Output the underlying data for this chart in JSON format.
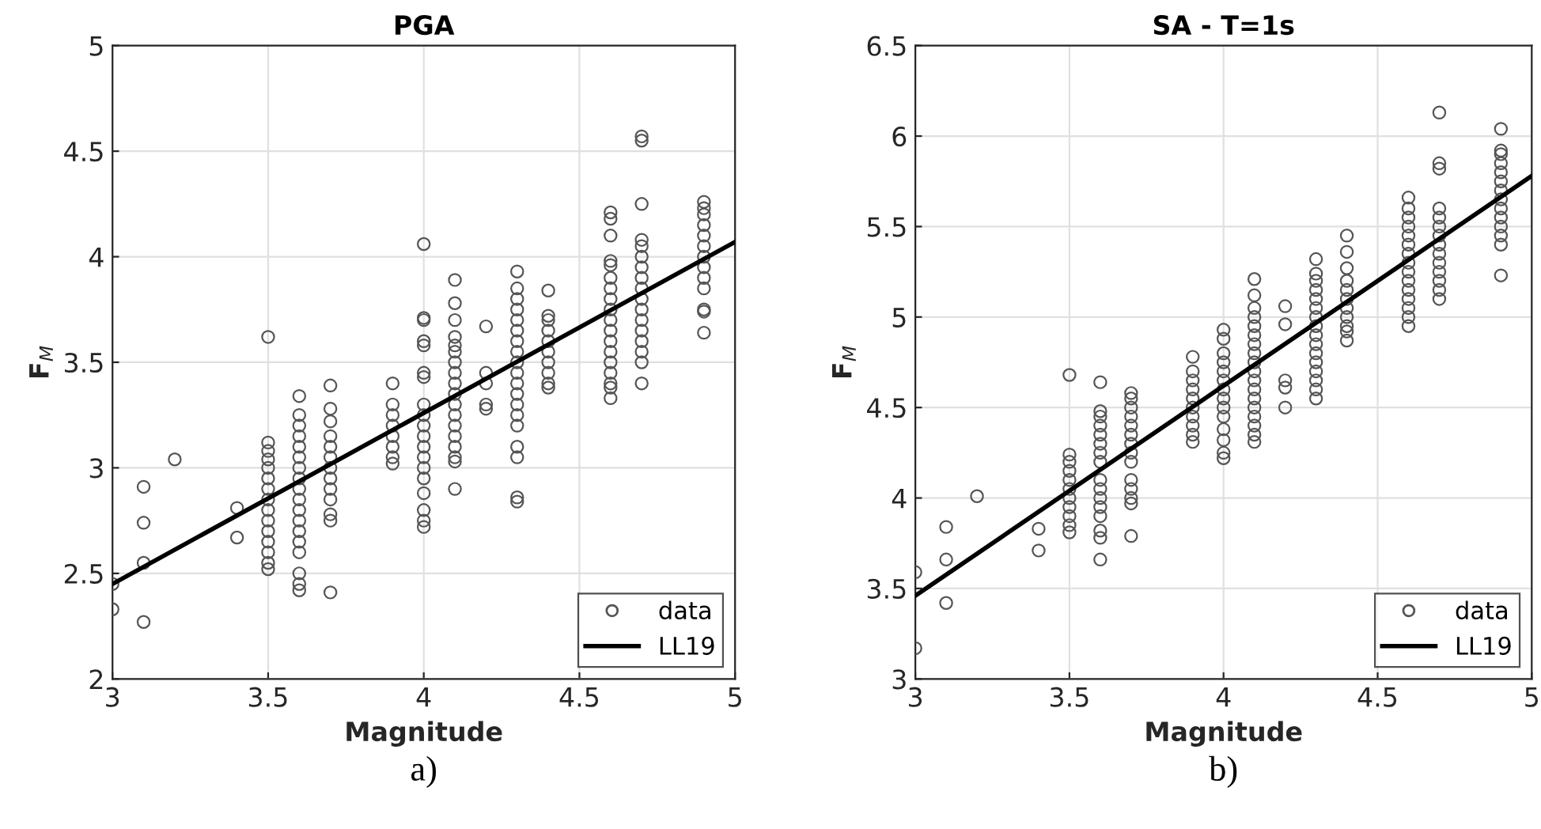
{
  "chart_data": [
    {
      "type": "scatter",
      "title": "PGA",
      "xlabel": "Magnitude",
      "ylabel": "F$_{M}$",
      "xlim": [
        3,
        5
      ],
      "xticks": [
        3,
        3.5,
        4,
        4.5,
        5
      ],
      "ylim": [
        2,
        5
      ],
      "yticks": [
        2,
        2.5,
        3,
        3.5,
        4,
        4.5,
        5
      ],
      "grid": true,
      "legend": "bottom right",
      "annotations": [
        "a)"
      ],
      "series": [
        {
          "name": "data",
          "marker": "circle",
          "color": "#555555",
          "x": [
            3.0,
            3.0,
            3.1,
            3.1,
            3.1,
            3.1,
            3.2,
            3.4,
            3.4,
            3.5,
            3.5,
            3.5,
            3.5,
            3.5,
            3.5,
            3.5,
            3.5,
            3.5,
            3.5,
            3.5,
            3.5,
            3.5,
            3.5,
            3.5,
            3.6,
            3.6,
            3.6,
            3.6,
            3.6,
            3.6,
            3.6,
            3.6,
            3.6,
            3.6,
            3.6,
            3.6,
            3.6,
            3.6,
            3.6,
            3.6,
            3.6,
            3.6,
            3.7,
            3.7,
            3.7,
            3.7,
            3.7,
            3.7,
            3.7,
            3.7,
            3.7,
            3.7,
            3.7,
            3.7,
            3.7,
            3.9,
            3.9,
            3.9,
            3.9,
            3.9,
            3.9,
            3.9,
            3.9,
            4.0,
            4.0,
            4.0,
            4.0,
            4.0,
            4.0,
            4.0,
            4.0,
            4.0,
            4.0,
            4.0,
            4.0,
            4.0,
            4.0,
            4.0,
            4.0,
            4.0,
            4.0,
            4.0,
            4.1,
            4.1,
            4.1,
            4.1,
            4.1,
            4.1,
            4.1,
            4.1,
            4.1,
            4.1,
            4.1,
            4.1,
            4.1,
            4.1,
            4.1,
            4.1,
            4.1,
            4.1,
            4.2,
            4.2,
            4.2,
            4.2,
            4.2,
            4.3,
            4.3,
            4.3,
            4.3,
            4.3,
            4.3,
            4.3,
            4.3,
            4.3,
            4.3,
            4.3,
            4.3,
            4.3,
            4.3,
            4.3,
            4.3,
            4.3,
            4.3,
            4.3,
            4.4,
            4.4,
            4.4,
            4.4,
            4.4,
            4.4,
            4.4,
            4.4,
            4.4,
            4.4,
            4.6,
            4.6,
            4.6,
            4.6,
            4.6,
            4.6,
            4.6,
            4.6,
            4.6,
            4.6,
            4.6,
            4.6,
            4.6,
            4.6,
            4.6,
            4.6,
            4.6,
            4.6,
            4.7,
            4.7,
            4.7,
            4.7,
            4.7,
            4.7,
            4.7,
            4.7,
            4.7,
            4.7,
            4.7,
            4.7,
            4.7,
            4.7,
            4.7,
            4.7,
            4.7,
            4.9,
            4.9,
            4.9,
            4.9,
            4.9,
            4.9,
            4.9,
            4.9,
            4.9,
            4.9,
            4.9,
            4.9,
            4.9
          ],
          "values": [
            2.45,
            2.33,
            2.91,
            2.74,
            2.55,
            2.27,
            3.04,
            2.81,
            2.67,
            3.62,
            3.12,
            3.08,
            3.04,
            3.0,
            2.95,
            2.9,
            2.85,
            2.8,
            2.75,
            2.7,
            2.65,
            2.6,
            2.55,
            2.52,
            3.34,
            3.25,
            3.2,
            3.15,
            3.1,
            3.05,
            3.0,
            2.95,
            2.9,
            2.85,
            2.8,
            2.75,
            2.7,
            2.65,
            2.6,
            2.5,
            2.45,
            2.42,
            3.39,
            3.28,
            3.22,
            3.15,
            3.1,
            3.05,
            3.0,
            2.95,
            2.9,
            2.85,
            2.78,
            2.75,
            2.41,
            3.4,
            3.3,
            3.25,
            3.2,
            3.15,
            3.1,
            3.05,
            3.02,
            4.06,
            3.71,
            3.7,
            3.6,
            3.58,
            3.45,
            3.43,
            3.3,
            3.25,
            3.2,
            3.15,
            3.1,
            3.05,
            3.0,
            2.95,
            2.88,
            2.8,
            2.75,
            2.72,
            3.89,
            3.78,
            3.7,
            3.62,
            3.58,
            3.55,
            3.5,
            3.45,
            3.4,
            3.35,
            3.3,
            3.25,
            3.2,
            3.15,
            3.1,
            3.05,
            3.03,
            2.9,
            3.67,
            3.45,
            3.4,
            3.3,
            3.28,
            3.93,
            3.85,
            3.8,
            3.75,
            3.7,
            3.65,
            3.6,
            3.55,
            3.5,
            3.45,
            3.4,
            3.35,
            3.3,
            3.25,
            3.2,
            3.1,
            3.05,
            2.86,
            2.84,
            3.84,
            3.72,
            3.7,
            3.65,
            3.6,
            3.55,
            3.5,
            3.45,
            3.4,
            3.38,
            4.21,
            4.18,
            4.1,
            3.98,
            3.96,
            3.9,
            3.85,
            3.8,
            3.75,
            3.7,
            3.65,
            3.6,
            3.55,
            3.5,
            3.45,
            3.4,
            3.38,
            3.33,
            4.57,
            4.55,
            4.25,
            4.08,
            4.05,
            4.0,
            3.95,
            3.9,
            3.85,
            3.8,
            3.75,
            3.7,
            3.65,
            3.6,
            3.55,
            3.5,
            3.4,
            4.26,
            4.23,
            4.2,
            4.15,
            4.1,
            4.05,
            4.0,
            3.95,
            3.9,
            3.85,
            3.75,
            3.74,
            3.64
          ]
        },
        {
          "name": "LL19",
          "type": "line",
          "line_style": "solid",
          "color": "#000000",
          "x": [
            3,
            5
          ],
          "values": [
            2.45,
            4.07
          ]
        }
      ]
    },
    {
      "type": "scatter",
      "title": "SA - T=1s",
      "xlabel": "Magnitude",
      "ylabel": "F$_{M}$",
      "xlim": [
        3,
        5
      ],
      "xticks": [
        3,
        3.5,
        4,
        4.5,
        5
      ],
      "ylim": [
        3,
        6.5
      ],
      "yticks": [
        3,
        3.5,
        4,
        4.5,
        5,
        5.5,
        6,
        6.5
      ],
      "grid": true,
      "legend": "bottom right",
      "annotations": [
        "b)"
      ],
      "series": [
        {
          "name": "data",
          "marker": "circle",
          "color": "#555555",
          "x": [
            3.0,
            3.0,
            3.1,
            3.1,
            3.1,
            3.2,
            3.4,
            3.4,
            3.5,
            3.5,
            3.5,
            3.5,
            3.5,
            3.5,
            3.5,
            3.5,
            3.5,
            3.5,
            3.5,
            3.6,
            3.6,
            3.6,
            3.6,
            3.6,
            3.6,
            3.6,
            3.6,
            3.6,
            3.6,
            3.6,
            3.6,
            3.6,
            3.6,
            3.6,
            3.6,
            3.7,
            3.7,
            3.7,
            3.7,
            3.7,
            3.7,
            3.7,
            3.7,
            3.7,
            3.7,
            3.7,
            3.7,
            3.7,
            3.7,
            3.9,
            3.9,
            3.9,
            3.9,
            3.9,
            3.9,
            3.9,
            3.9,
            3.9,
            3.9,
            4.0,
            4.0,
            4.0,
            4.0,
            4.0,
            4.0,
            4.0,
            4.0,
            4.0,
            4.0,
            4.0,
            4.0,
            4.0,
            4.0,
            4.1,
            4.1,
            4.1,
            4.1,
            4.1,
            4.1,
            4.1,
            4.1,
            4.1,
            4.1,
            4.1,
            4.1,
            4.1,
            4.1,
            4.1,
            4.1,
            4.1,
            4.1,
            4.2,
            4.2,
            4.2,
            4.2,
            4.2,
            4.3,
            4.3,
            4.3,
            4.3,
            4.3,
            4.3,
            4.3,
            4.3,
            4.3,
            4.3,
            4.3,
            4.3,
            4.3,
            4.3,
            4.3,
            4.3,
            4.4,
            4.4,
            4.4,
            4.4,
            4.4,
            4.4,
            4.4,
            4.4,
            4.4,
            4.4,
            4.4,
            4.6,
            4.6,
            4.6,
            4.6,
            4.6,
            4.6,
            4.6,
            4.6,
            4.6,
            4.6,
            4.6,
            4.6,
            4.6,
            4.6,
            4.6,
            4.7,
            4.7,
            4.7,
            4.7,
            4.7,
            4.7,
            4.7,
            4.7,
            4.7,
            4.7,
            4.7,
            4.7,
            4.7,
            4.7,
            4.9,
            4.9,
            4.9,
            4.9,
            4.9,
            4.9,
            4.9,
            4.9,
            4.9,
            4.9,
            4.9,
            4.9,
            4.9,
            4.9
          ],
          "values": [
            3.59,
            3.17,
            3.84,
            3.66,
            3.42,
            4.01,
            3.83,
            3.71,
            4.68,
            4.24,
            4.2,
            4.15,
            4.1,
            4.05,
            4.0,
            3.95,
            3.9,
            3.85,
            3.81,
            4.64,
            4.48,
            4.45,
            4.4,
            4.35,
            4.3,
            4.25,
            4.2,
            4.1,
            4.05,
            4.0,
            3.95,
            3.9,
            3.82,
            3.78,
            3.66,
            4.58,
            4.55,
            4.5,
            4.45,
            4.4,
            4.35,
            4.3,
            4.25,
            4.2,
            4.1,
            4.05,
            4.0,
            3.97,
            3.79,
            4.78,
            4.7,
            4.65,
            4.6,
            4.55,
            4.5,
            4.45,
            4.4,
            4.35,
            4.31,
            4.93,
            4.88,
            4.8,
            4.75,
            4.7,
            4.65,
            4.6,
            4.55,
            4.5,
            4.45,
            4.38,
            4.32,
            4.25,
            4.22,
            5.21,
            5.12,
            5.05,
            5.0,
            4.95,
            4.9,
            4.85,
            4.8,
            4.75,
            4.7,
            4.65,
            4.6,
            4.55,
            4.5,
            4.45,
            4.4,
            4.35,
            4.31,
            5.06,
            4.96,
            4.65,
            4.61,
            4.5,
            5.32,
            5.24,
            5.2,
            5.15,
            5.1,
            5.05,
            5.0,
            4.95,
            4.9,
            4.85,
            4.8,
            4.75,
            4.7,
            4.65,
            4.6,
            4.55,
            5.45,
            5.36,
            5.27,
            5.2,
            5.15,
            5.1,
            5.05,
            5.0,
            4.95,
            4.92,
            4.87,
            5.66,
            5.6,
            5.55,
            5.5,
            5.45,
            5.4,
            5.35,
            5.3,
            5.25,
            5.2,
            5.15,
            5.1,
            5.05,
            5.0,
            4.95,
            6.13,
            5.85,
            5.82,
            5.6,
            5.55,
            5.5,
            5.45,
            5.4,
            5.35,
            5.3,
            5.25,
            5.2,
            5.15,
            5.1,
            6.04,
            5.92,
            5.9,
            5.85,
            5.8,
            5.75,
            5.7,
            5.65,
            5.6,
            5.55,
            5.5,
            5.45,
            5.4,
            5.23
          ]
        },
        {
          "name": "LL19",
          "type": "line",
          "line_style": "solid",
          "color": "#000000",
          "x": [
            3,
            5
          ],
          "values": [
            3.46,
            5.78
          ]
        }
      ]
    }
  ]
}
